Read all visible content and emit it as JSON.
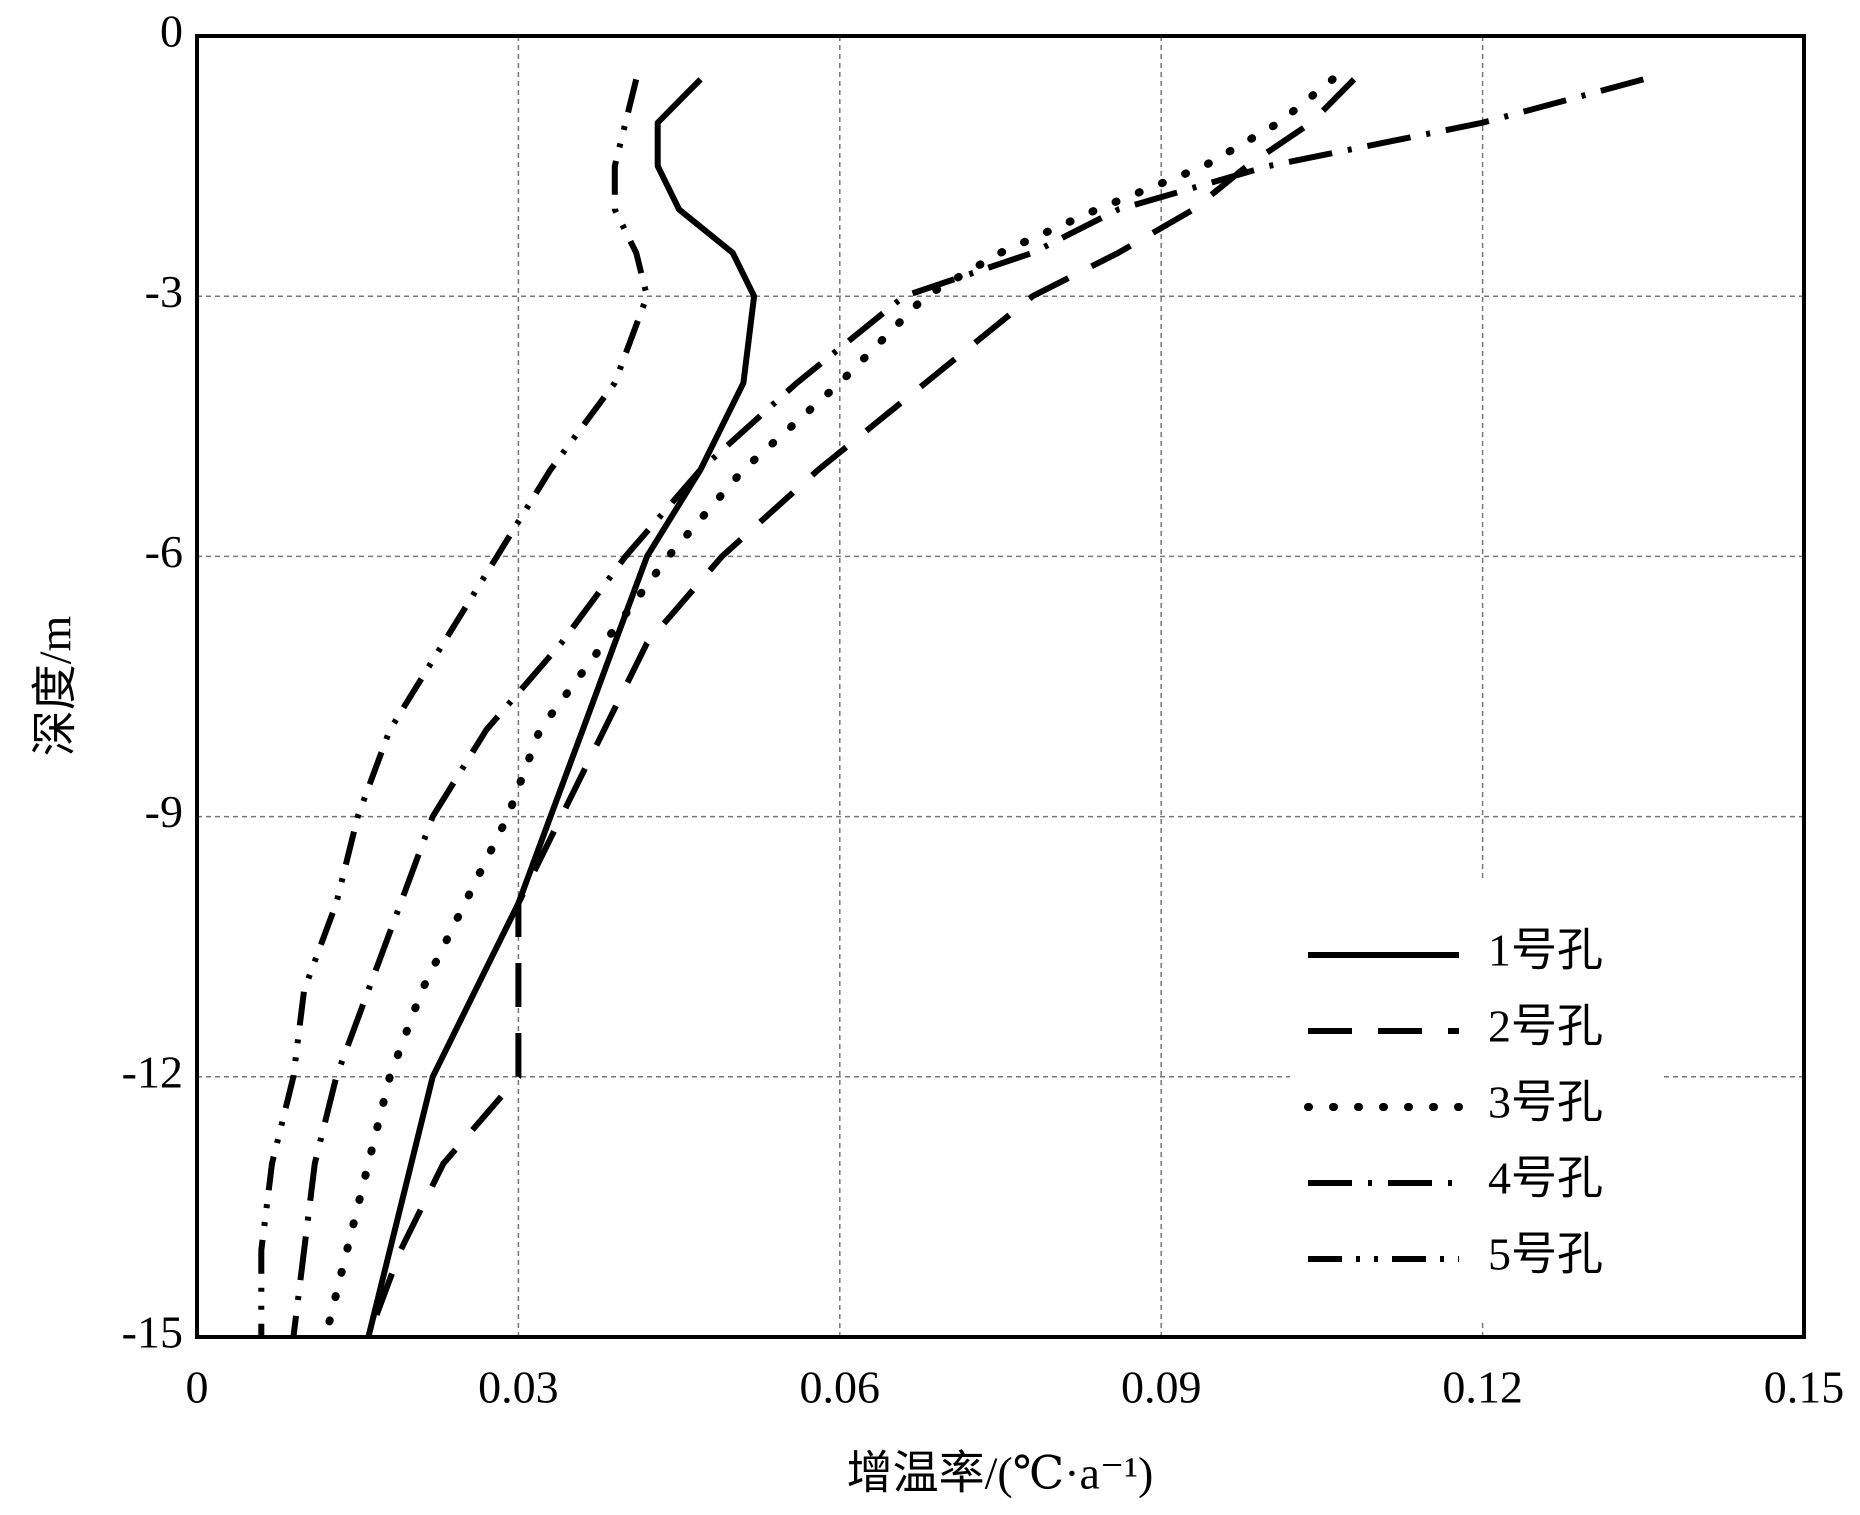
{
  "chart_data": {
    "type": "line",
    "xlabel": "增温率/(℃·a⁻¹)",
    "ylabel": "深度/m",
    "y": [
      -0.5,
      -1,
      -1.5,
      -2,
      -2.5,
      -3,
      -4,
      -5,
      -6,
      -7,
      -8,
      -9,
      -10,
      -11,
      -12,
      -13,
      -14,
      -15
    ],
    "series": [
      {
        "name": "1号孔",
        "color": "#000000",
        "style": "solid",
        "values": [
          0.047,
          0.043,
          0.043,
          0.045,
          0.05,
          0.052,
          0.051,
          0.047,
          0.042,
          0.039,
          0.036,
          0.033,
          0.03,
          0.026,
          0.022,
          0.02,
          0.018,
          0.016
        ]
      },
      {
        "name": "2号孔",
        "color": "#000000",
        "style": "dashed",
        "values": [
          0.108,
          0.104,
          0.098,
          0.093,
          0.086,
          0.078,
          0.068,
          0.058,
          0.049,
          0.042,
          0.038,
          0.034,
          0.03,
          0.03,
          0.03,
          0.023,
          0.019,
          0.016
        ]
      },
      {
        "name": "3号孔",
        "color": "#000000",
        "style": "dotted",
        "values": [
          0.106,
          0.101,
          0.094,
          0.084,
          0.075,
          0.068,
          0.06,
          0.051,
          0.044,
          0.038,
          0.032,
          0.029,
          0.025,
          0.021,
          0.018,
          0.016,
          0.014,
          0.012
        ]
      },
      {
        "name": "4号孔",
        "color": "#000000",
        "style": "dashdot",
        "values": [
          0.135,
          0.12,
          0.1,
          0.086,
          0.078,
          0.066,
          0.056,
          0.047,
          0.04,
          0.034,
          0.027,
          0.022,
          0.019,
          0.016,
          0.013,
          0.011,
          0.01,
          0.009
        ]
      },
      {
        "name": "5号孔",
        "color": "#000000",
        "style": "dashdotdot",
        "values": [
          0.041,
          0.04,
          0.039,
          0.039,
          0.041,
          0.042,
          0.039,
          0.033,
          0.028,
          0.023,
          0.018,
          0.015,
          0.013,
          0.01,
          0.009,
          0.007,
          0.006,
          0.006
        ]
      }
    ],
    "xlim": [
      0,
      0.15
    ],
    "xticks": [
      0,
      0.03,
      0.06,
      0.09,
      0.12,
      0.15
    ],
    "ylim": [
      -15,
      0
    ],
    "yticks": [
      0,
      -3,
      -6,
      -9,
      -12,
      -15
    ],
    "grid": true,
    "legend": "lower right"
  }
}
